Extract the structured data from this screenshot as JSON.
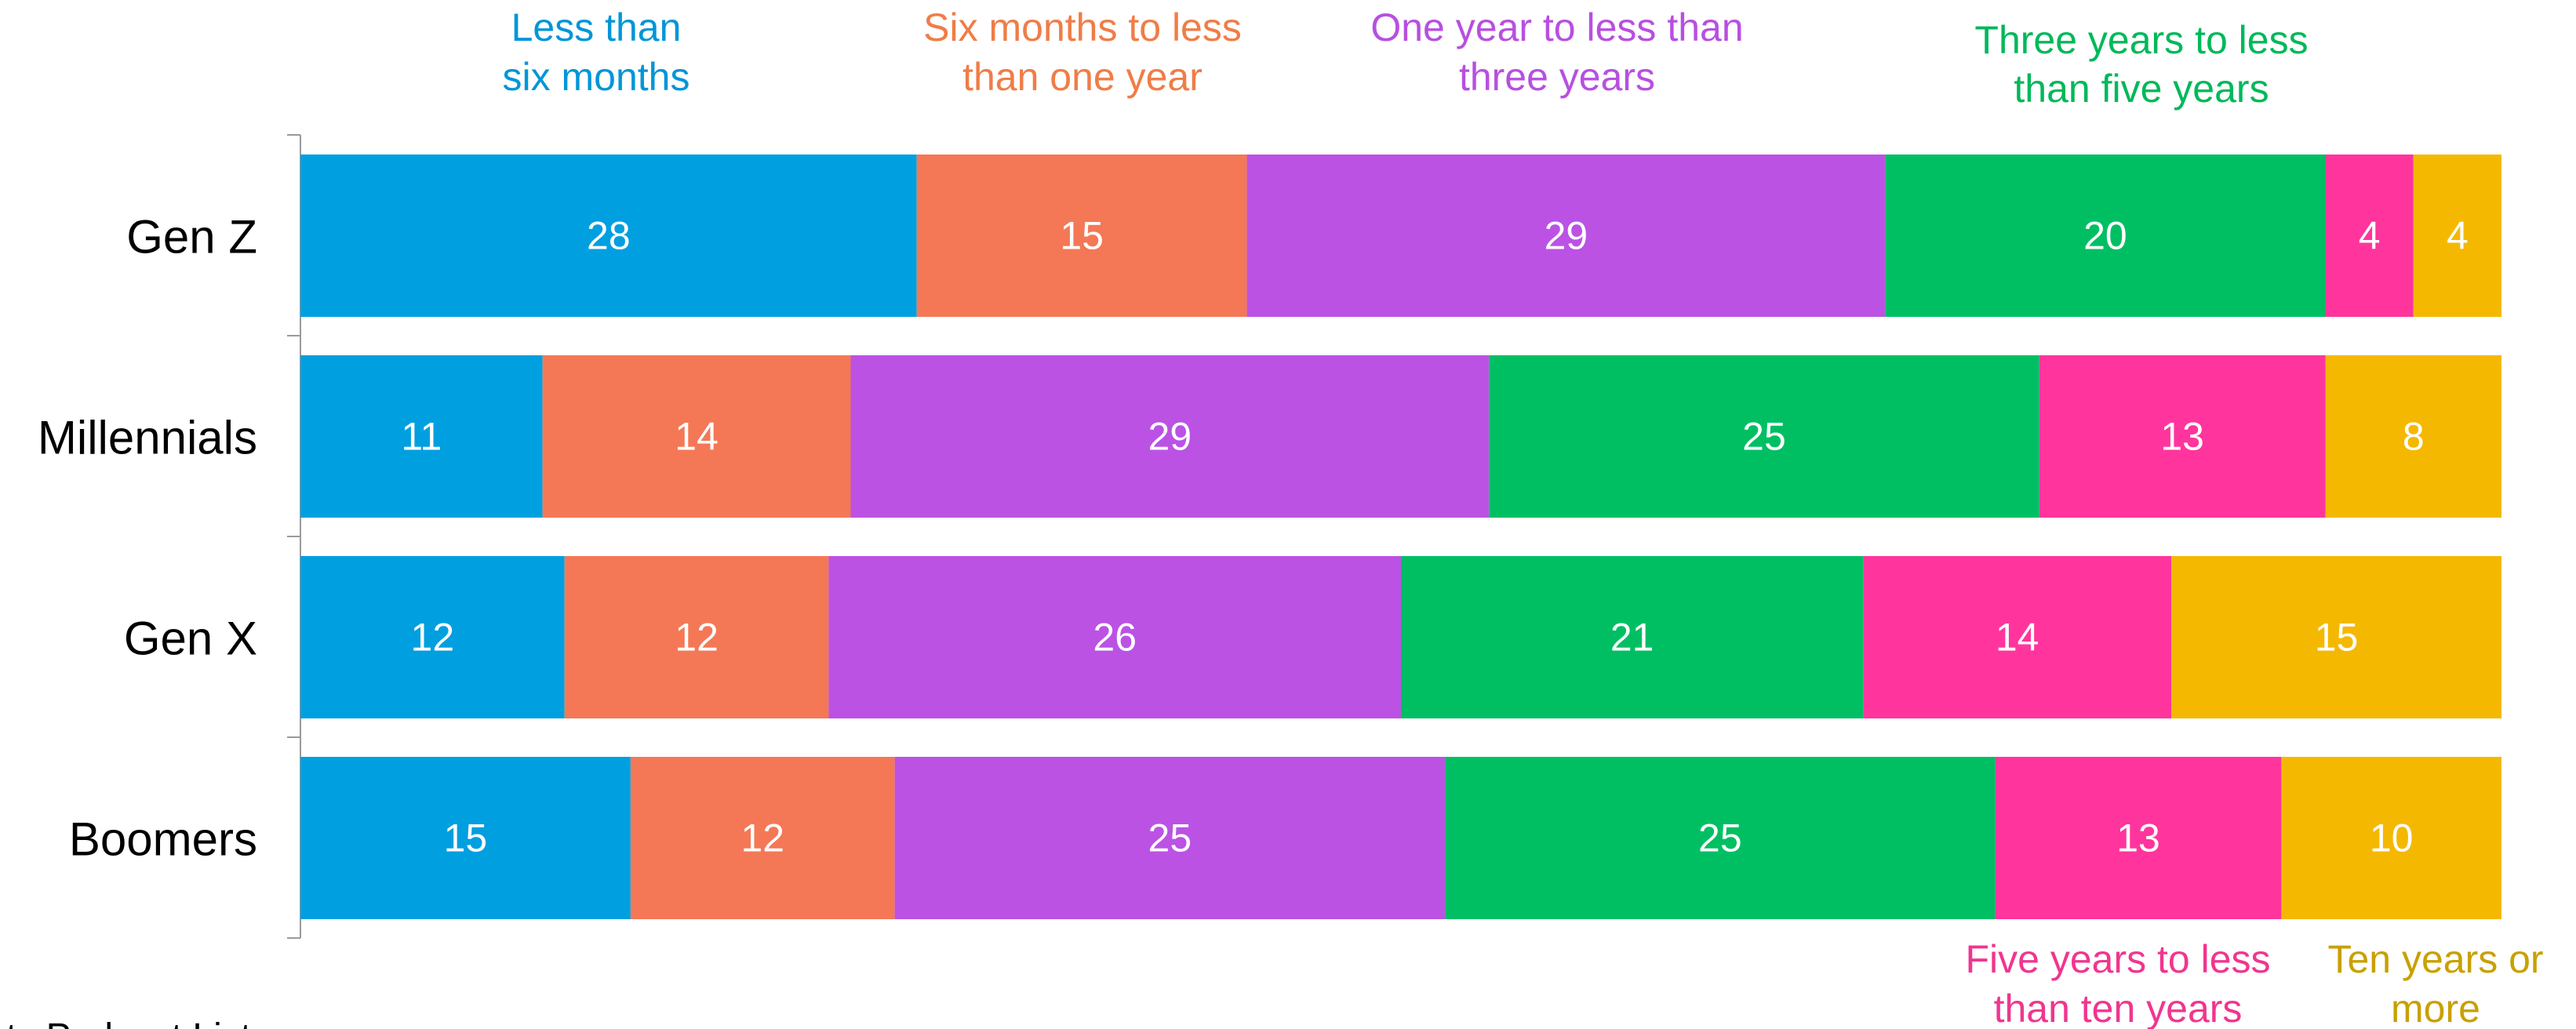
{
  "chart_data": {
    "type": "bar",
    "orientation": "horizontal",
    "stacked": true,
    "categories": [
      "Gen Z",
      "Millennials",
      "Gen X",
      "Boomers"
    ],
    "series": [
      {
        "name": "Less than six months",
        "color": "#009FE0",
        "values": [
          28,
          11,
          12,
          15
        ]
      },
      {
        "name": "Six months to less than one year",
        "color": "#F47856",
        "values": [
          15,
          14,
          12,
          12
        ]
      },
      {
        "name": "One year to less than three years",
        "color": "#BB52E4",
        "values": [
          29,
          29,
          26,
          25
        ]
      },
      {
        "name": "Three years to less than five years",
        "color": "#00BF63",
        "values": [
          20,
          25,
          21,
          25
        ]
      },
      {
        "name": "Five years to less than ten years",
        "color": "#FF359D",
        "values": [
          4,
          13,
          14,
          13
        ]
      },
      {
        "name": "Ten years or more",
        "color": "#F5B800",
        "values": [
          4,
          8,
          15,
          10
        ]
      }
    ],
    "legend_colors": {
      "Less than six months": "#0096D6",
      "Six months to less than one year": "#EF7D47",
      "One year to less than three years": "#B84FE0",
      "Three years to less than five years": "#00B85A",
      "Five years to less than ten years": "#F0368F",
      "Ten years or more": "#C9A000"
    },
    "legend_lines": [
      [
        "Less than",
        "six months"
      ],
      [
        "Six months to less",
        "than one year"
      ],
      [
        "One year to less than",
        "three years"
      ],
      [
        "Three years to less",
        "than five years"
      ],
      [
        "Five years to less",
        "than ten years"
      ],
      [
        "Ten years or",
        "more"
      ]
    ],
    "footer_text": "rts Podcast Listeners",
    "data_label_color": "#ffffff",
    "xlim": [
      0,
      100
    ]
  }
}
